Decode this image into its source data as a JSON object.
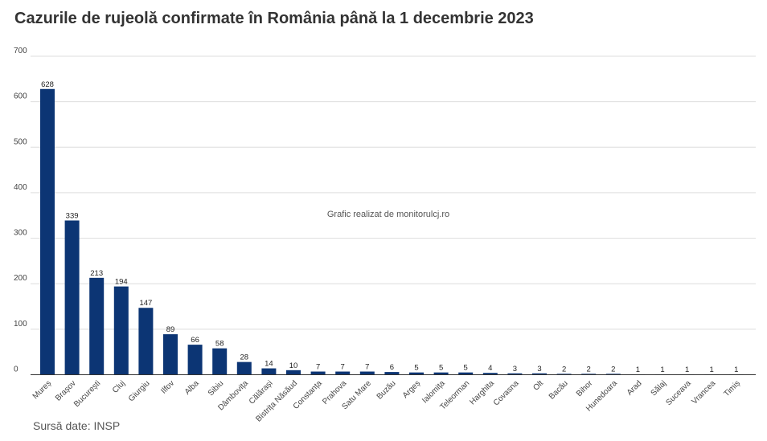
{
  "chart_data": {
    "type": "bar",
    "title": "Cazurile de rujeolă confirmate în România până la 1 decembrie 2023",
    "xlabel": "",
    "ylabel": "",
    "ylim": [
      0,
      700
    ],
    "yticks": [
      "0",
      "100",
      "200",
      "300",
      "400",
      "500",
      "600",
      "700"
    ],
    "grid": true,
    "categories": [
      "Mureș",
      "Brașov",
      "București",
      "Cluj",
      "Giurgiu",
      "Ilfov",
      "Alba",
      "Sibiu",
      "Dâmbovița",
      "Călărași",
      "Bistrița Năsăud",
      "Constanța",
      "Prahova",
      "Satu Mare",
      "Buzău",
      "Argeș",
      "Ialomița",
      "Teleorman",
      "Harghita",
      "Covasna",
      "Olt",
      "Bacău",
      "Bihor",
      "Hunedoara",
      "Arad",
      "Sălaj",
      "Suceava",
      "Vrancea",
      "Timiș"
    ],
    "values": [
      628,
      339,
      213,
      194,
      147,
      89,
      66,
      58,
      28,
      14,
      10,
      7,
      7,
      7,
      6,
      5,
      5,
      5,
      4,
      3,
      3,
      2,
      2,
      2,
      1,
      1,
      1,
      1,
      1
    ],
    "bar_color": "#0c3574",
    "watermark": "Grafic realizat de monitorulcj.ro",
    "source": "Sursă date: INSP"
  }
}
